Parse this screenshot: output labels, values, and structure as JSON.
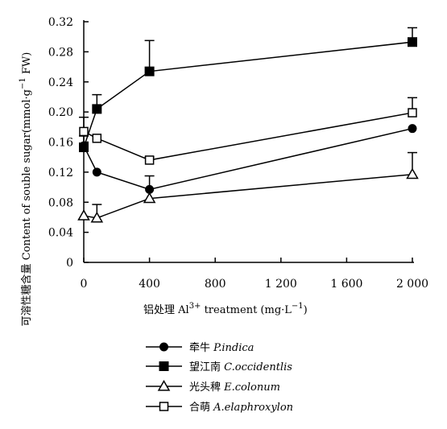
{
  "chart_data": {
    "type": "line",
    "x": [
      0,
      80,
      400,
      2000
    ],
    "x_ticks": [
      "0",
      "400",
      "800",
      "1 200",
      "1 600",
      "2 000"
    ],
    "x_tick_values": [
      0,
      400,
      800,
      1200,
      1600,
      2000
    ],
    "xlim": [
      0,
      2000
    ],
    "y_ticks": [
      "0",
      "0.04",
      "0.08",
      "0.12",
      "0.16",
      "0.20",
      "0.24",
      "0.28",
      "0.32"
    ],
    "y_tick_values": [
      0,
      0.04,
      0.08,
      0.12,
      0.16,
      0.2,
      0.24,
      0.28,
      0.32
    ],
    "ylim": [
      0,
      0.32
    ],
    "xlabel": {
      "prefix": "铝处理 Al",
      "sup": "3+",
      "suffix": " treatment (mg·L",
      "sup2": "−1",
      "end": ")"
    },
    "ylabel": {
      "main": "可溶性糖含量 Content of souble sugar(mmol·g",
      "sup": "−1",
      "end": " FW)"
    },
    "grid": false,
    "legend_position": "bottom",
    "series": [
      {
        "cn": "牵牛",
        "name": "P.indica",
        "marker": "filled-circle",
        "values": [
          0.155,
          0.12,
          0.097,
          0.178
        ],
        "errors": [
          0.013,
          0.0,
          0.018,
          0.0
        ]
      },
      {
        "cn": "望江南",
        "name": "C.occidentlis",
        "marker": "filled-square",
        "values": [
          0.153,
          0.204,
          0.254,
          0.293
        ],
        "errors": [
          0.0,
          0.019,
          0.041,
          0.019
        ]
      },
      {
        "cn": "光头稗",
        "name": "E.colonum",
        "marker": "open-triangle",
        "values": [
          0.062,
          0.059,
          0.085,
          0.117
        ],
        "errors": [
          0.0,
          0.018,
          0.0,
          0.029
        ]
      },
      {
        "cn": "合萌",
        "name": "A.elaphroxylon",
        "marker": "open-square",
        "values": [
          0.174,
          0.165,
          0.136,
          0.199
        ],
        "errors": [
          0.019,
          0.0,
          0.004,
          0.02
        ]
      }
    ]
  }
}
